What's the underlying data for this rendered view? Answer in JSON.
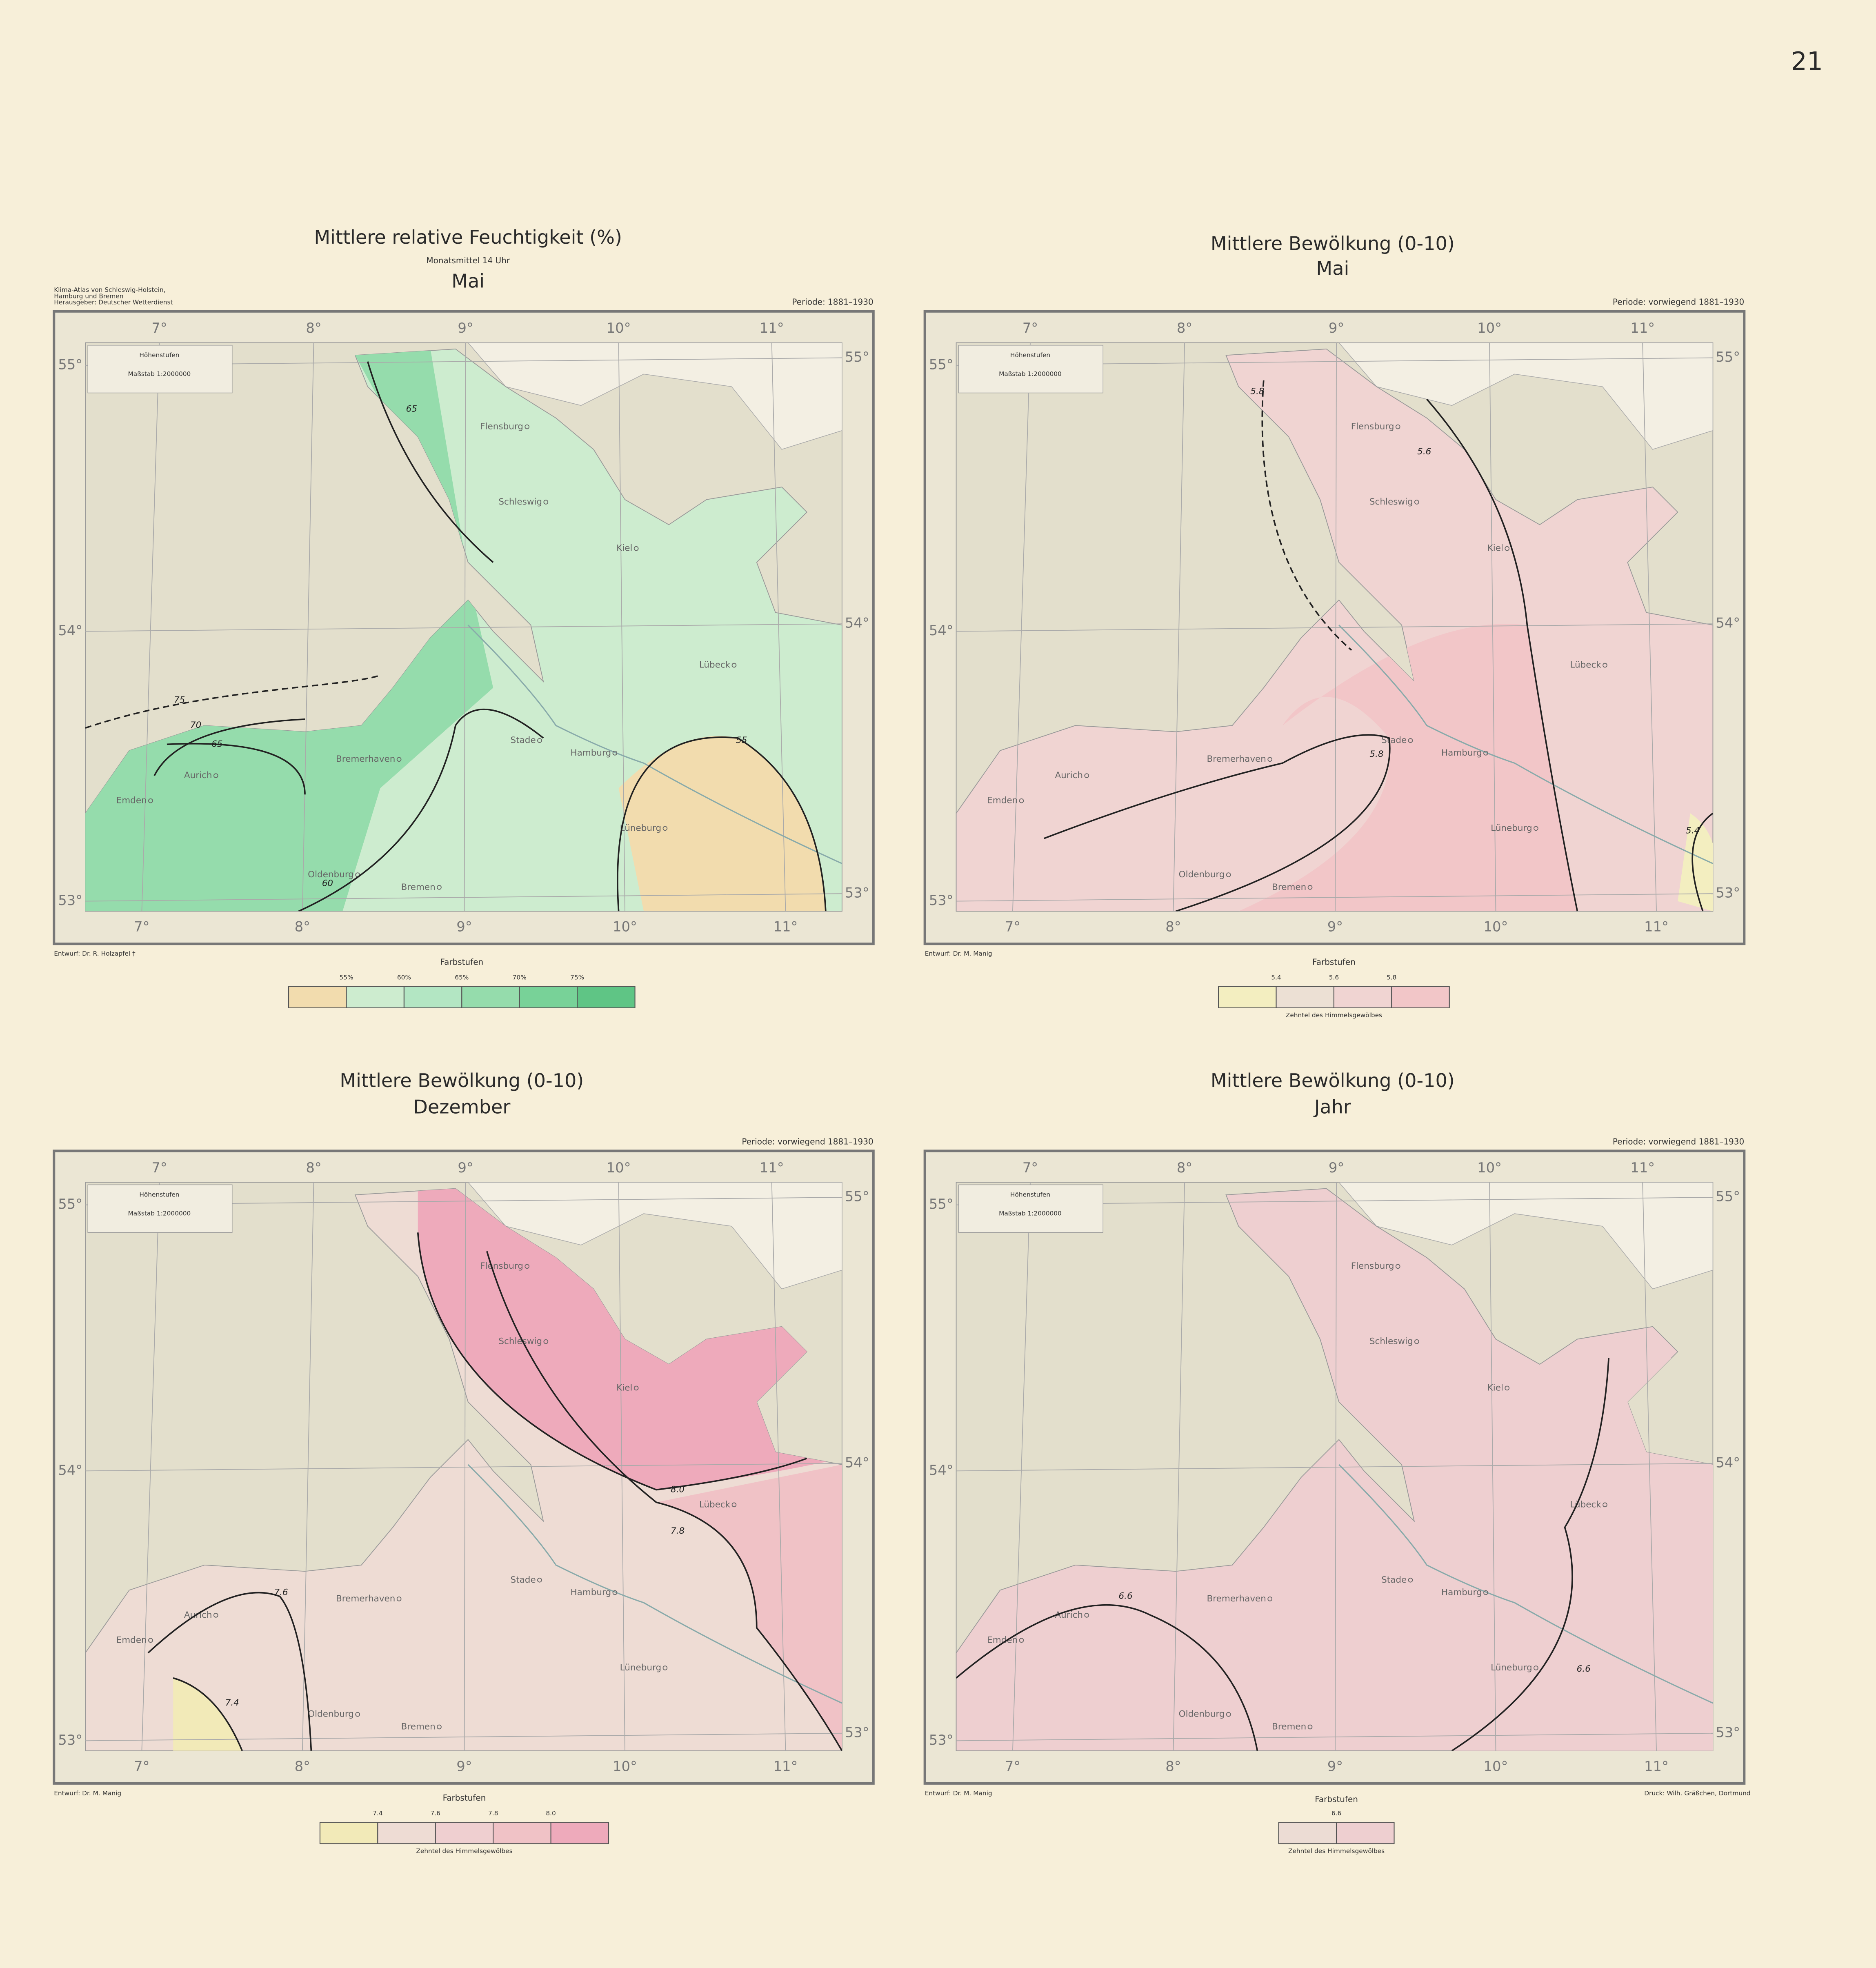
{
  "page_number": "21",
  "coordinate_labels": {
    "longitudes": [
      "7°",
      "8°",
      "9°",
      "10°",
      "11°"
    ],
    "latitudes": [
      "55°",
      "54°",
      "53°"
    ]
  },
  "cities": [
    "Flensburg",
    "Schleswig",
    "Kiel",
    "Lübeck",
    "Stade",
    "Hamburg",
    "Bremerhaven",
    "Aurich",
    "Emden",
    "Lüneburg",
    "Oldenburg",
    "Bremen"
  ],
  "inset": {
    "title": "Höhenstufen",
    "scale": "Maßstab 1:2000000"
  },
  "maps": [
    {
      "title": "Mittlere relative Feuchtigkeit (%)",
      "subtitle": "Monatsmittel 14 Uhr",
      "month": "Mai",
      "atlas_note": [
        "Klima-Atlas von Schleswig-Holstein,",
        "Hamburg und Bremen",
        "Herausgeber: Deutscher Wetterdienst"
      ],
      "period": "Periode: 1881–1930",
      "credit": "Entwurf: Dr. R. Holzapfel †",
      "legend": {
        "title": "Farbstufen",
        "labels": [
          "55%",
          "60%",
          "65%",
          "70%",
          "75%"
        ],
        "colors": [
          "#f2dcae",
          "#cdeccf",
          "#b3e6c3",
          "#95dcac",
          "#78d298",
          "#5fc585"
        ]
      },
      "isolines": [
        "75",
        "70",
        "65",
        "65",
        "60",
        "55"
      ]
    },
    {
      "title": "Mittlere Bewölkung (0-10)",
      "month": "Mai",
      "period": "Periode: vorwiegend 1881–1930",
      "credit": "Entwurf: Dr. M. Manig",
      "legend": {
        "title": "Farbstufen",
        "labels": [
          "5.4",
          "5.6",
          "5.8"
        ],
        "caption": "Zehntel des Himmelsgewölbes",
        "colors": [
          "#f3eec0",
          "#ece0d4",
          "#f0d4d2",
          "#f2c6c8"
        ]
      },
      "isolines": [
        "5.8",
        "5.6",
        "5.8",
        "5.4"
      ]
    },
    {
      "title": "Mittlere Bewölkung (0-10)",
      "month": "Dezember",
      "period": "Periode: vorwiegend 1881–1930",
      "credit": "Entwurf: Dr. M. Manig",
      "legend": {
        "title": "Farbstufen",
        "labels": [
          "7.4",
          "7.6",
          "7.8",
          "8.0"
        ],
        "caption": "Zehntel des Himmelsgewölbes",
        "colors": [
          "#f2eab8",
          "#eedcd4",
          "#efcfd0",
          "#f0c2c6",
          "#eeaabb"
        ]
      },
      "isolines": [
        "8.0",
        "7.8",
        "7.6",
        "7.4"
      ]
    },
    {
      "title": "Mittlere Bewölkung (0-10)",
      "month": "Jahr",
      "period": "Periode: vorwiegend 1881–1930",
      "credit": "Entwurf: Dr. M. Manig",
      "printer": "Druck: Wilh. Gräßchen, Dortmund",
      "legend": {
        "title": "Farbstufen",
        "labels": [
          "6.6"
        ],
        "caption": "Zehntel des Himmelsgewölbes",
        "colors": [
          "#ecdcd4",
          "#eecfd0"
        ]
      },
      "isolines": [
        "6.6",
        "6.6"
      ]
    }
  ]
}
